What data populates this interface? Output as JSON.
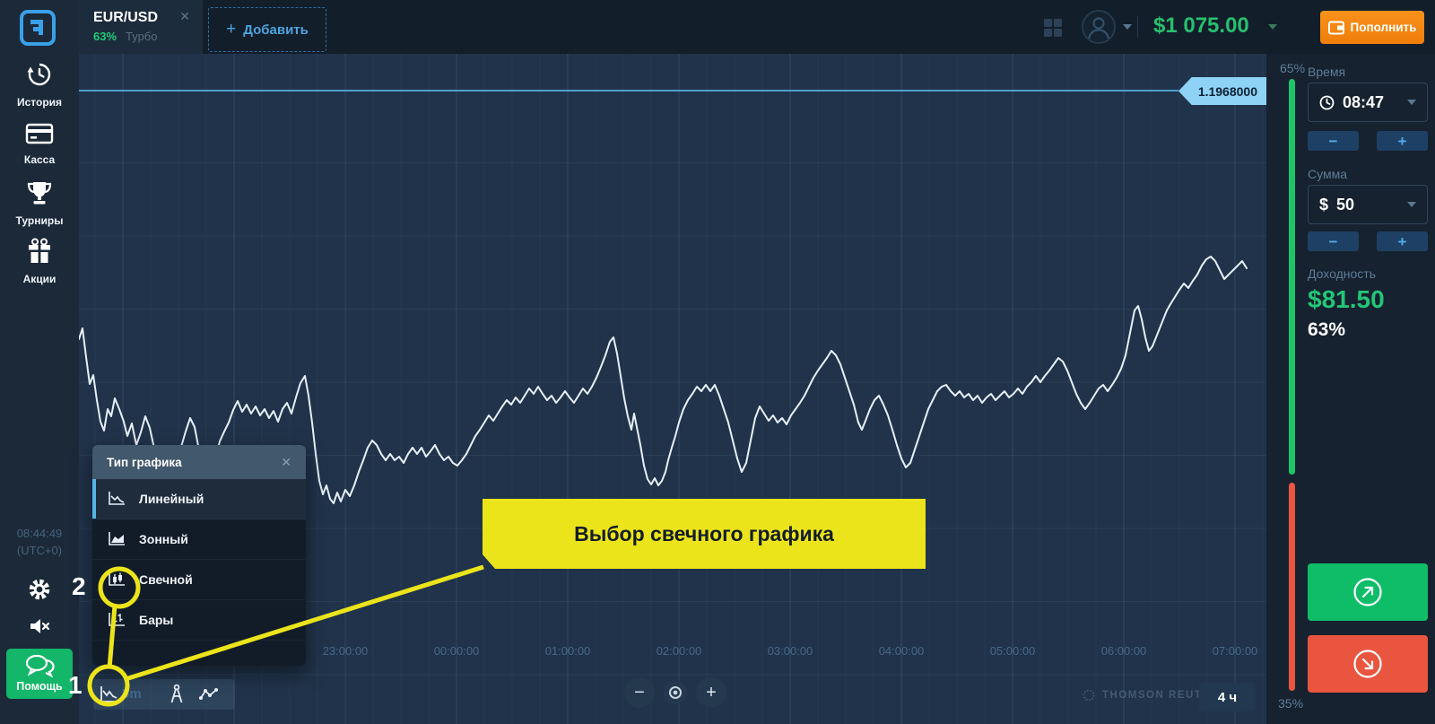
{
  "topbar": {
    "tab": {
      "symbol": "EUR/USD",
      "payout": "63%",
      "mode": "Турбо",
      "close": "✕"
    },
    "add_plus": "+",
    "add_label": "Добавить",
    "balance": "$1 075.00",
    "deposit_label": "Пополнить"
  },
  "sidebar": {
    "items": [
      {
        "label": "История"
      },
      {
        "label": "Касса"
      },
      {
        "label": "Турниры"
      },
      {
        "label": "Акции"
      }
    ],
    "clock": "08:44:49",
    "utc": "(UTC+0)",
    "help_label": "Помощь"
  },
  "chart": {
    "price_label": "1.1968000",
    "timeframe": "4 ч",
    "toolbar_hint": "5m",
    "watermark": "THOMSON REUTERS",
    "zoom_out": "−",
    "zoom_in": "+",
    "time_labels": [
      "23:00:00",
      "00:00:00",
      "01:00:00",
      "02:00:00",
      "03:00:00",
      "04:00:00",
      "05:00:00",
      "06:00:00",
      "07:00:00"
    ],
    "line_points": "88,378 92,366 96,398 100,428 104,418 108,446 112,470 116,480 120,456 124,464 128,444 133,456 138,470 142,486 147,472 152,496 157,482 162,464 167,477 172,500 177,512 182,508 187,519 192,506 197,511 202,498 207,481 212,466 217,476 222,502 227,538 232,546 236,531 240,512 245,492 250,481 255,471 260,457 265,447 270,459 275,451 280,461 285,453 290,463 295,456 300,466 305,458 310,470 315,456 320,449 325,461 330,443 335,427 340,419 344,441 348,471 352,506 356,536 360,551 364,541 368,556 372,561 376,549 380,559 385,546 390,553 395,541 400,526 405,513 410,499 415,491 420,496 425,506 430,513 435,506 440,513 445,509 450,516 455,506 460,499 465,506 470,499 475,509 480,503 485,496 490,506 495,513 500,509 505,516 510,519 515,513 520,506 525,496 530,486 535,479 540,471 545,463 550,469 555,461 560,453 565,446 570,451 575,443 580,449 585,441 590,433 595,439 600,431 605,439 610,446 615,441 620,449 625,443 630,436 635,443 640,449 645,441 650,433 655,439 660,431 665,421 670,409 675,396 680,381 684,376 688,394 692,419 696,444 700,464 704,479 707,461 710,476 714,496 718,519 722,534 726,540 730,533 734,541 738,536 742,526 745,513 749,499 753,486 757,471 762,456 767,446 772,439 777,431 782,436 787,429 792,436 797,429 802,441 807,456 812,471 817,491 822,511 827,526 832,516 837,491 842,466 847,453 852,461 857,469 862,463 867,471 872,466 877,473 882,463 887,456 892,449 897,441 902,431 907,421 912,413 917,406 922,399 927,391 932,396 937,406 942,421 947,436 952,451 957,471 961,479 965,469 970,456 975,446 980,441 985,451 990,463 995,479 1000,496 1005,511 1010,521 1015,516 1020,501 1025,486 1030,471 1035,456 1040,446 1045,436 1050,431 1055,429 1060,436 1065,441 1070,436 1075,443 1080,439 1085,446 1090,441 1095,449 1100,443 1105,439 1110,446 1115,441 1120,436 1125,443 1130,439 1135,433 1140,439 1145,431 1150,426 1155,419 1160,426 1165,419 1170,413 1175,406 1180,399 1185,403 1190,413 1195,426 1200,439 1205,449 1210,456 1215,449 1220,441 1225,433 1230,429 1235,436 1240,429 1245,421 1250,411 1255,396 1260,371 1265,346 1269,341 1273,356 1277,376 1281,391 1285,386 1289,376 1293,366 1297,356 1301,346 1305,339 1310,331 1315,323 1320,316 1325,321 1330,313 1335,306 1340,296 1345,289 1350,286 1355,291 1360,301 1365,311 1370,306 1375,301 1380,296 1385,291 1390,299"
  },
  "popup": {
    "title": "Тип графика",
    "close": "✕",
    "items": [
      {
        "label": "Линейный"
      },
      {
        "label": "Зонный"
      },
      {
        "label": "Свечной"
      },
      {
        "label": "Бары"
      }
    ]
  },
  "tutorial": {
    "callout": "Выбор свечного графика",
    "step_one": "1",
    "step_two": "2"
  },
  "panel": {
    "gauge_top": "65%",
    "gauge_bottom": "35%",
    "time_label": "Время",
    "time_value": "08:47",
    "minus": "−",
    "plus": "+",
    "amount_label": "Сумма",
    "amount_currency": "$",
    "amount_value": "50",
    "payout_label": "Доходность",
    "payout_amount": "$81.50",
    "payout_percent": "63%"
  },
  "colors": {
    "accent_blue": "#4BA6E2",
    "green": "#23C577",
    "orange": "#F5850E",
    "red": "#E9553F",
    "yellow": "#ECE41A",
    "gauge_green": "#1DC566",
    "price_tag": "#8ED2F6",
    "chart_line": "#E7F0F9"
  }
}
